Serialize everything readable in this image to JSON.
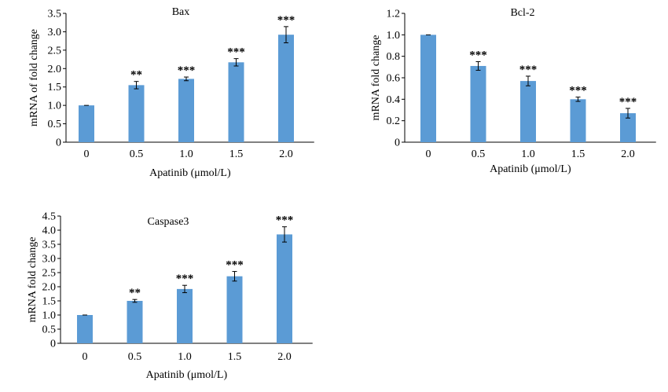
{
  "colors": {
    "bar": "#5b9bd5",
    "axis": "#000000",
    "error": "#000000"
  },
  "chart_data": [
    {
      "type": "bar",
      "title": "Bax",
      "xlabel": "Apatinib (μmol/L)",
      "ylabel": "mRNA of fold change",
      "categories": [
        "0",
        "0.5",
        "1.0",
        "1.5",
        "2.0"
      ],
      "values": [
        1.0,
        1.55,
        1.72,
        2.17,
        2.92
      ],
      "errors": [
        0.0,
        0.1,
        0.05,
        0.1,
        0.22
      ],
      "significance": [
        "",
        "**",
        "***",
        "***",
        "***"
      ],
      "ylim": [
        0,
        3.5
      ],
      "yticks": [
        "0",
        "0.5",
        "1.0",
        "1.5",
        "2.0",
        "2.5",
        "3.0",
        "3.5"
      ],
      "grid": false
    },
    {
      "type": "bar",
      "title": "Bcl-2",
      "xlabel": "Apatinib (μmol/L)",
      "ylabel": "mRNA fold change",
      "categories": [
        "0",
        "0.5",
        "1.0",
        "1.5",
        "2.0"
      ],
      "values": [
        1.0,
        0.71,
        0.57,
        0.4,
        0.27
      ],
      "errors": [
        0.0,
        0.04,
        0.045,
        0.02,
        0.045
      ],
      "significance": [
        "",
        "***",
        "***",
        "***",
        "***"
      ],
      "ylim": [
        0,
        1.2
      ],
      "yticks": [
        "0",
        "0.2",
        "0.4",
        "0.6",
        "0.8",
        "1.0",
        "1.2"
      ],
      "grid": false
    },
    {
      "type": "bar",
      "title": "Caspase3",
      "xlabel": "Apatinib (μmol/L)",
      "ylabel": "mRNA fold change",
      "categories": [
        "0",
        "0.5",
        "1.0",
        "1.5",
        "2.0"
      ],
      "values": [
        1.0,
        1.5,
        1.92,
        2.37,
        3.85
      ],
      "errors": [
        0.0,
        0.05,
        0.13,
        0.17,
        0.27
      ],
      "significance": [
        "",
        "**",
        "***",
        "***",
        "***"
      ],
      "ylim": [
        0,
        4.5
      ],
      "yticks": [
        "0",
        "0.5",
        "1.0",
        "1.5",
        "2.0",
        "2.5",
        "3.0",
        "3.5",
        "4.0",
        "4.5"
      ],
      "grid": false
    }
  ]
}
